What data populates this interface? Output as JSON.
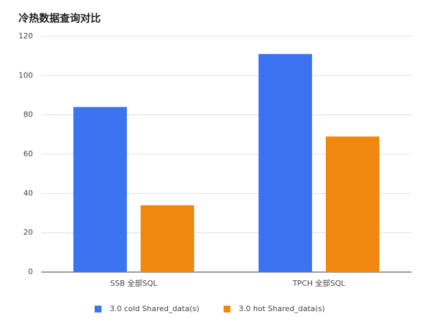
{
  "chart_data": {
    "type": "bar",
    "title": "冷热数据查询对比",
    "categories": [
      "SSB 全部SQL",
      "TPCH 全部SQL"
    ],
    "series": [
      {
        "name": "3.0 cold Shared_data(s)",
        "color": "#3b73f0",
        "values": [
          84,
          111
        ]
      },
      {
        "name": "3.0 hot Shared_data(s)",
        "color": "#f0880f",
        "values": [
          34,
          69
        ]
      }
    ],
    "ylim": [
      0,
      120
    ],
    "yticks": [
      0,
      20,
      40,
      60,
      80,
      100,
      120
    ],
    "grid": true,
    "legend": "bottom"
  }
}
